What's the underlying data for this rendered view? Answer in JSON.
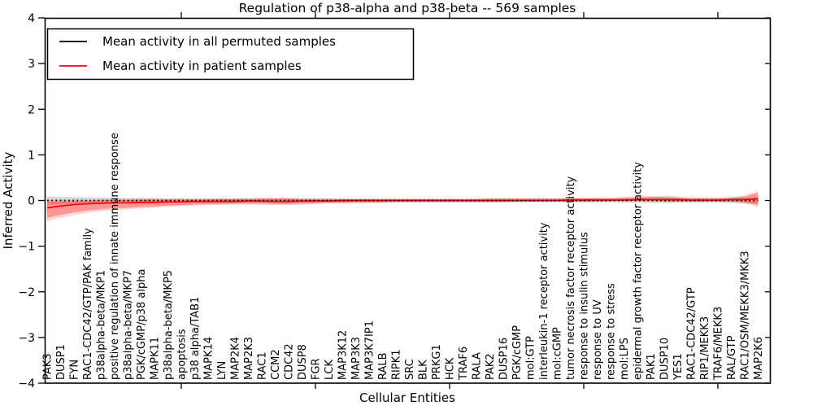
{
  "title": "Regulation of p38-alpha and p38-beta -- 569 samples",
  "legend": {
    "items": [
      {
        "label": "Mean activity in all permuted samples",
        "color": "#000000"
      },
      {
        "label": "Mean activity in patient samples",
        "color": "#ff0000"
      }
    ]
  },
  "axes": {
    "xlabel": "Cellular Entities",
    "ylabel": "Inferred Activity"
  },
  "chart_data": {
    "type": "line",
    "title": "Regulation of p38-alpha and p38-beta -- 569 samples",
    "xlabel": "Cellular Entities",
    "ylabel": "Inferred Activity",
    "ylim": [
      -4,
      4
    ],
    "yticks": [
      -4,
      -3,
      -2,
      -1,
      0,
      1,
      2,
      3,
      4
    ],
    "yticklabels": [
      "−4",
      "−3",
      "−2",
      "−1",
      "0",
      "1",
      "2",
      "3",
      "4"
    ],
    "xtick_indices": [
      10,
      20,
      30,
      40,
      50
    ],
    "grid": false,
    "legend_position": "upper left",
    "categories": [
      "PAK3",
      "DUSP1",
      "FYN",
      "RAC1-CDC42/GTP/PAK family",
      "p38alpha-beta/MKP1",
      "positive regulation of innate immune response",
      "p38alpha-beta/MKP7",
      "PGK/cGMP/p38 alpha",
      "MAPK11",
      "p38alpha-beta/MKP5",
      "apoptosis",
      "p38 alpha/TAB1",
      "MAPK14",
      "LYN",
      "MAP2K4",
      "MAP2K3",
      "RAC1",
      "CCM2",
      "CDC42",
      "DUSP8",
      "FGR",
      "LCK",
      "MAP3K12",
      "MAP3K3",
      "MAP3K7IP1",
      "RALB",
      "RIPK1",
      "SRC",
      "BLK",
      "PRKG1",
      "HCK",
      "TRAF6",
      "RALA",
      "PAK2",
      "DUSP16",
      "PGK/cGMP",
      "mol:GTP",
      "interleukin-1 receptor activity",
      "mol:cGMP",
      "tumor necrosis factor receptor activity",
      "response to insulin stimulus",
      "response to UV",
      "response to stress",
      "mol:LPS",
      "epidermal growth factor receptor activity",
      "PAK1",
      "DUSP10",
      "YES1",
      "RAC1-CDC42/GTP",
      "RIP1/MEKK3",
      "TRAF6/MEKK3",
      "RAL/GTP",
      "RAC1/OSM/MEKK3/MKK3",
      "MAP2K6"
    ],
    "series": [
      {
        "name": "Mean activity in all permuted samples",
        "color": "#000000",
        "style": "dotted",
        "values": [
          0,
          0,
          0,
          0,
          0,
          0,
          0,
          0,
          0,
          0,
          0,
          0,
          0,
          0,
          0,
          0,
          0,
          0,
          0,
          0,
          0,
          0,
          0,
          0,
          0,
          0,
          0,
          0,
          0,
          0,
          0,
          0,
          0,
          0,
          0,
          0,
          0,
          0,
          0,
          0,
          0,
          0,
          0,
          0,
          0,
          0,
          0,
          0,
          0,
          0,
          0,
          0,
          0,
          0
        ],
        "band_half_width": [
          0.09,
          0.08,
          0.075,
          0.07,
          0.065,
          0.06,
          0.06,
          0.055,
          0.055,
          0.05,
          0.05,
          0.05,
          0.05,
          0.05,
          0.05,
          0.05,
          0.05,
          0.05,
          0.05,
          0.05,
          0.045,
          0.04,
          0.04,
          0.04,
          0.04,
          0.04,
          0.04,
          0.04,
          0.04,
          0.04,
          0.04,
          0.04,
          0.04,
          0.04,
          0.04,
          0.04,
          0.04,
          0.04,
          0.04,
          0.04,
          0.045,
          0.045,
          0.045,
          0.05,
          0.05,
          0.055,
          0.055,
          0.05,
          0.05,
          0.05,
          0.05,
          0.055,
          0.06,
          0.07
        ]
      },
      {
        "name": "Mean activity in patient samples",
        "color": "#ff0000",
        "style": "solid",
        "values": [
          -0.16,
          -0.12,
          -0.09,
          -0.07,
          -0.06,
          -0.05,
          -0.05,
          -0.04,
          -0.04,
          -0.03,
          -0.03,
          -0.02,
          -0.02,
          -0.02,
          -0.02,
          -0.01,
          -0.01,
          -0.02,
          -0.02,
          -0.01,
          -0.01,
          -0.01,
          0,
          0,
          0,
          0,
          0,
          0,
          0,
          0,
          0,
          0,
          0,
          0,
          0,
          0,
          0,
          0,
          0,
          0.01,
          0.01,
          0.01,
          0.01,
          0.01,
          0.02,
          0.02,
          0.02,
          0.02,
          0.01,
          0.01,
          0.01,
          0.02,
          0.02,
          0.04
        ],
        "band_lo": [
          -0.38,
          -0.31,
          -0.26,
          -0.22,
          -0.19,
          -0.17,
          -0.16,
          -0.14,
          -0.13,
          -0.11,
          -0.1,
          -0.09,
          -0.08,
          -0.08,
          -0.07,
          -0.07,
          -0.07,
          -0.08,
          -0.08,
          -0.07,
          -0.06,
          -0.05,
          -0.05,
          -0.04,
          -0.04,
          -0.04,
          -0.03,
          -0.03,
          -0.03,
          -0.03,
          -0.03,
          -0.03,
          -0.03,
          -0.03,
          -0.03,
          -0.02,
          -0.02,
          -0.02,
          -0.02,
          -0.02,
          -0.02,
          -0.02,
          -0.01,
          -0.01,
          -0.01,
          -0.01,
          -0.02,
          -0.02,
          -0.02,
          -0.02,
          -0.02,
          -0.02,
          -0.04,
          -0.1
        ],
        "band_hi": [
          -0.03,
          -0.02,
          -0.01,
          -0.01,
          0.0,
          0.01,
          0.01,
          0.02,
          0.02,
          0.02,
          0.02,
          0.02,
          0.02,
          0.03,
          0.03,
          0.03,
          0.04,
          0.04,
          0.04,
          0.03,
          0.03,
          0.03,
          0.03,
          0.03,
          0.03,
          0.03,
          0.03,
          0.03,
          0.03,
          0.03,
          0.03,
          0.03,
          0.03,
          0.04,
          0.04,
          0.04,
          0.04,
          0.04,
          0.04,
          0.05,
          0.05,
          0.05,
          0.05,
          0.06,
          0.07,
          0.08,
          0.08,
          0.07,
          0.05,
          0.05,
          0.05,
          0.06,
          0.09,
          0.17
        ]
      }
    ]
  }
}
